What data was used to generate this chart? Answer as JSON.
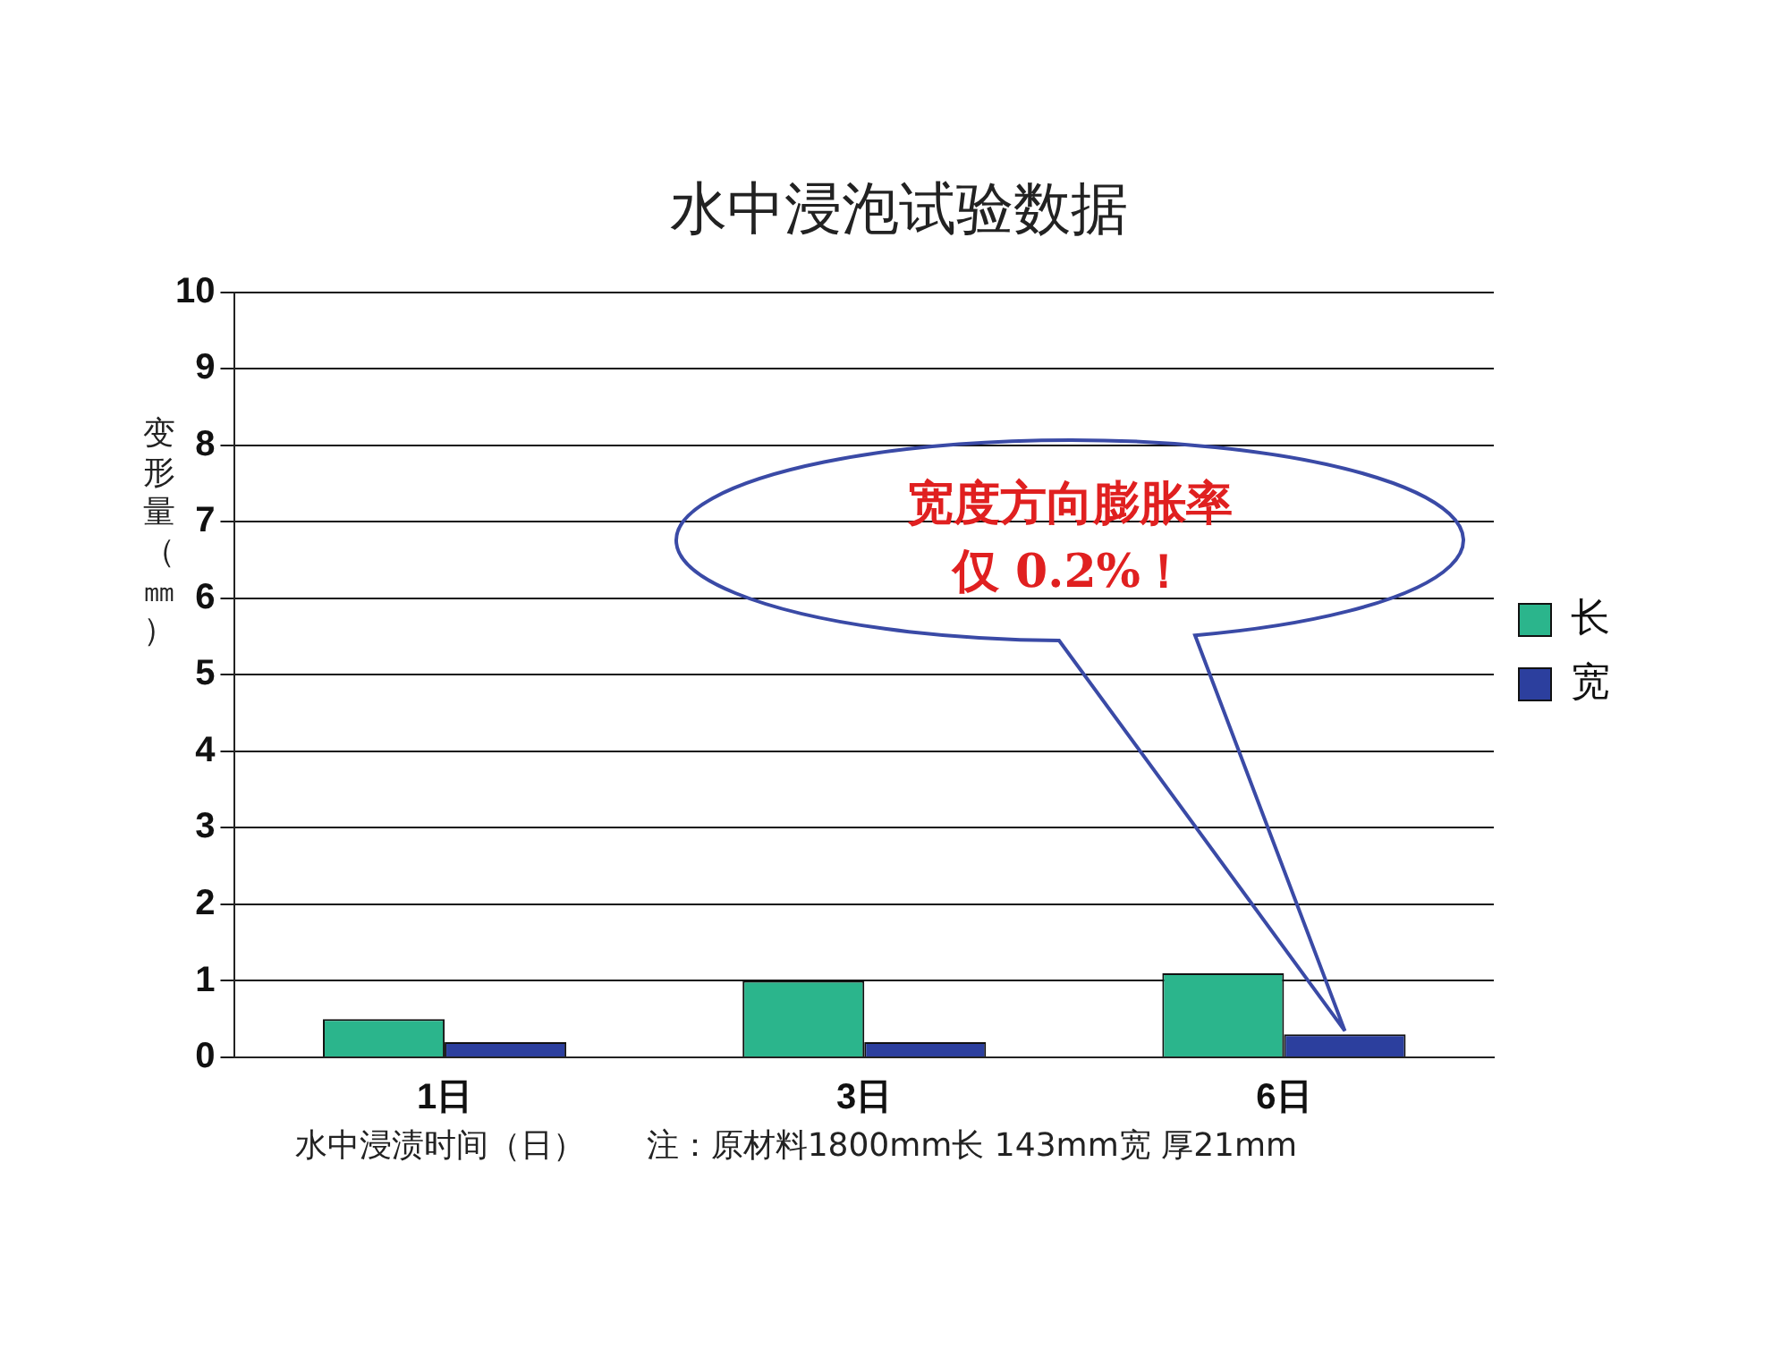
{
  "chart_data": {
    "type": "bar",
    "title": "水中浸泡试验数据",
    "xlabel": "水中浸渍时间（日）",
    "ylabel": "变形量（㎜）",
    "categories": [
      "1日",
      "3日",
      "6日"
    ],
    "series": [
      {
        "name": "长",
        "color": "#2bb58c",
        "values": [
          0.5,
          1.0,
          1.1
        ]
      },
      {
        "name": "宽",
        "color": "#2c3f9e",
        "values": [
          0.2,
          0.2,
          0.3
        ]
      }
    ],
    "ylim": [
      0,
      10
    ],
    "yticks": [
      0,
      1,
      2,
      3,
      4,
      5,
      6,
      7,
      8,
      9,
      10
    ],
    "grid": "y",
    "legend": "right",
    "annotations": [
      "宽度方向膨胀率",
      "仅 0.2%！",
      "注：原材料1800mm长 143mm宽 厚21mm"
    ]
  }
}
